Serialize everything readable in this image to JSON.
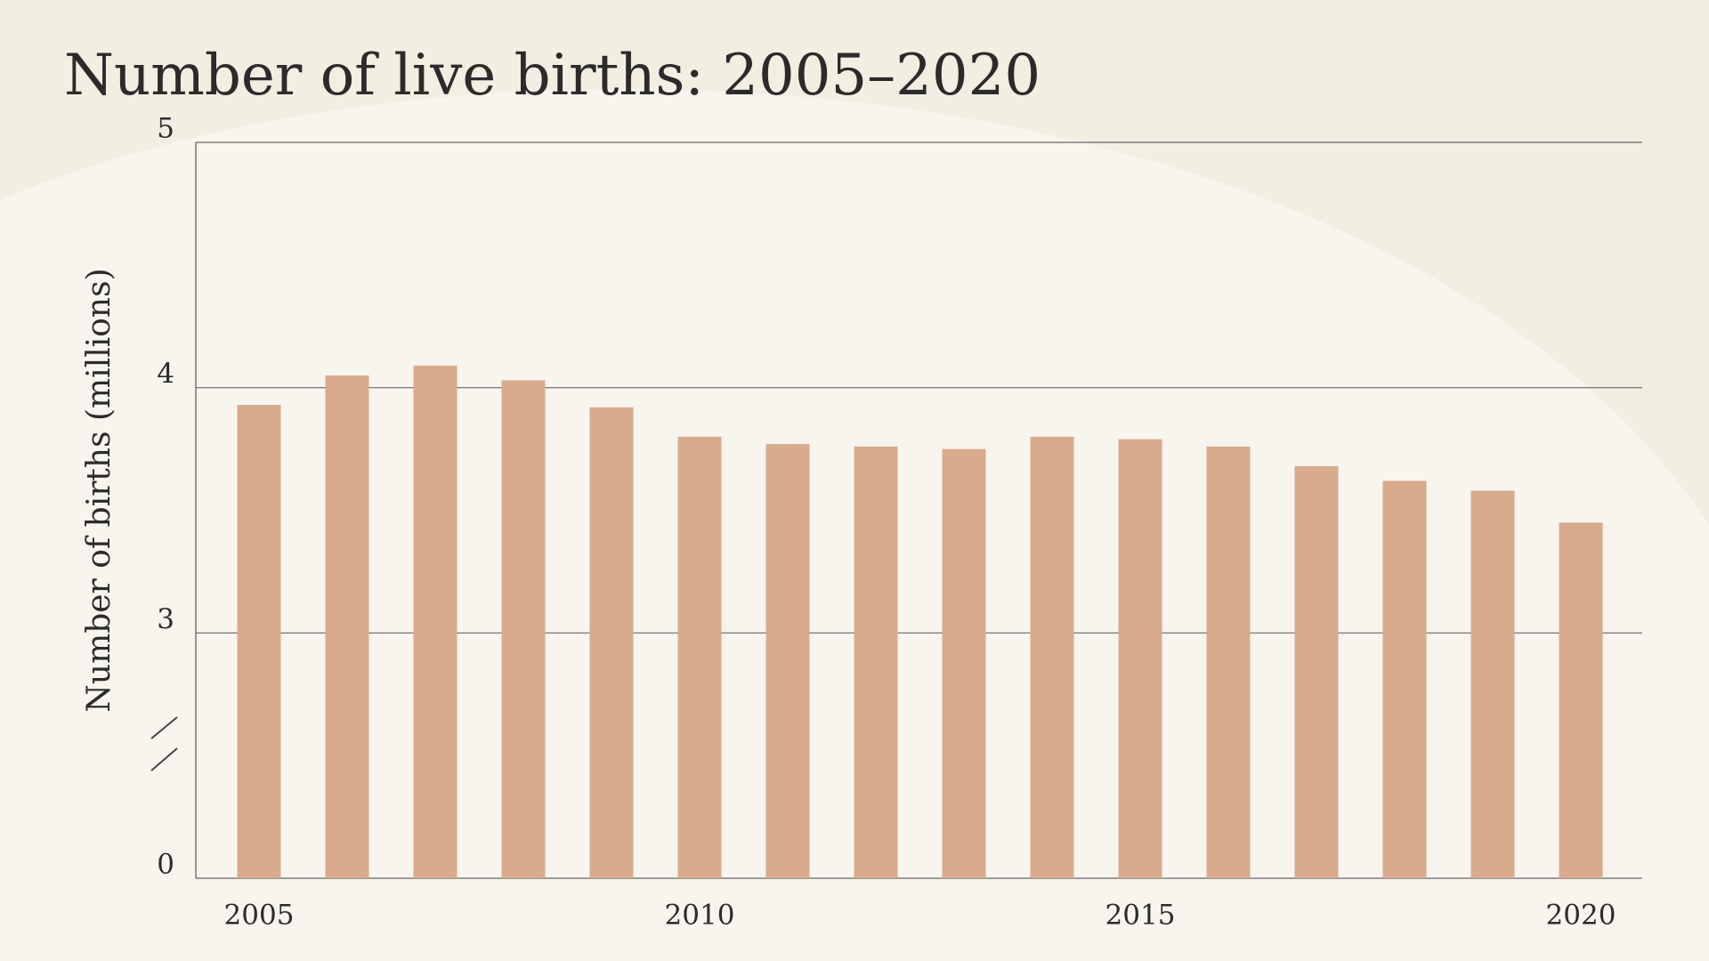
{
  "chart_data": {
    "type": "bar",
    "title": "Number of live births: 2005–2020",
    "y_label": "Number of births (millions)",
    "categories": [
      "2005",
      null,
      null,
      null,
      null,
      "2010",
      null,
      null,
      null,
      null,
      "2015",
      null,
      null,
      null,
      null,
      "2020"
    ],
    "values": [
      3.93,
      4.05,
      4.09,
      4.03,
      3.92,
      3.8,
      3.77,
      3.76,
      3.75,
      3.8,
      3.79,
      3.76,
      3.68,
      3.62,
      3.58,
      3.45
    ],
    "color": "#d8aa8e",
    "ylim": [
      0,
      5
    ],
    "yticks": [
      0,
      3,
      4,
      5
    ],
    "y_break": [
      0,
      2
    ],
    "grid": true
  }
}
